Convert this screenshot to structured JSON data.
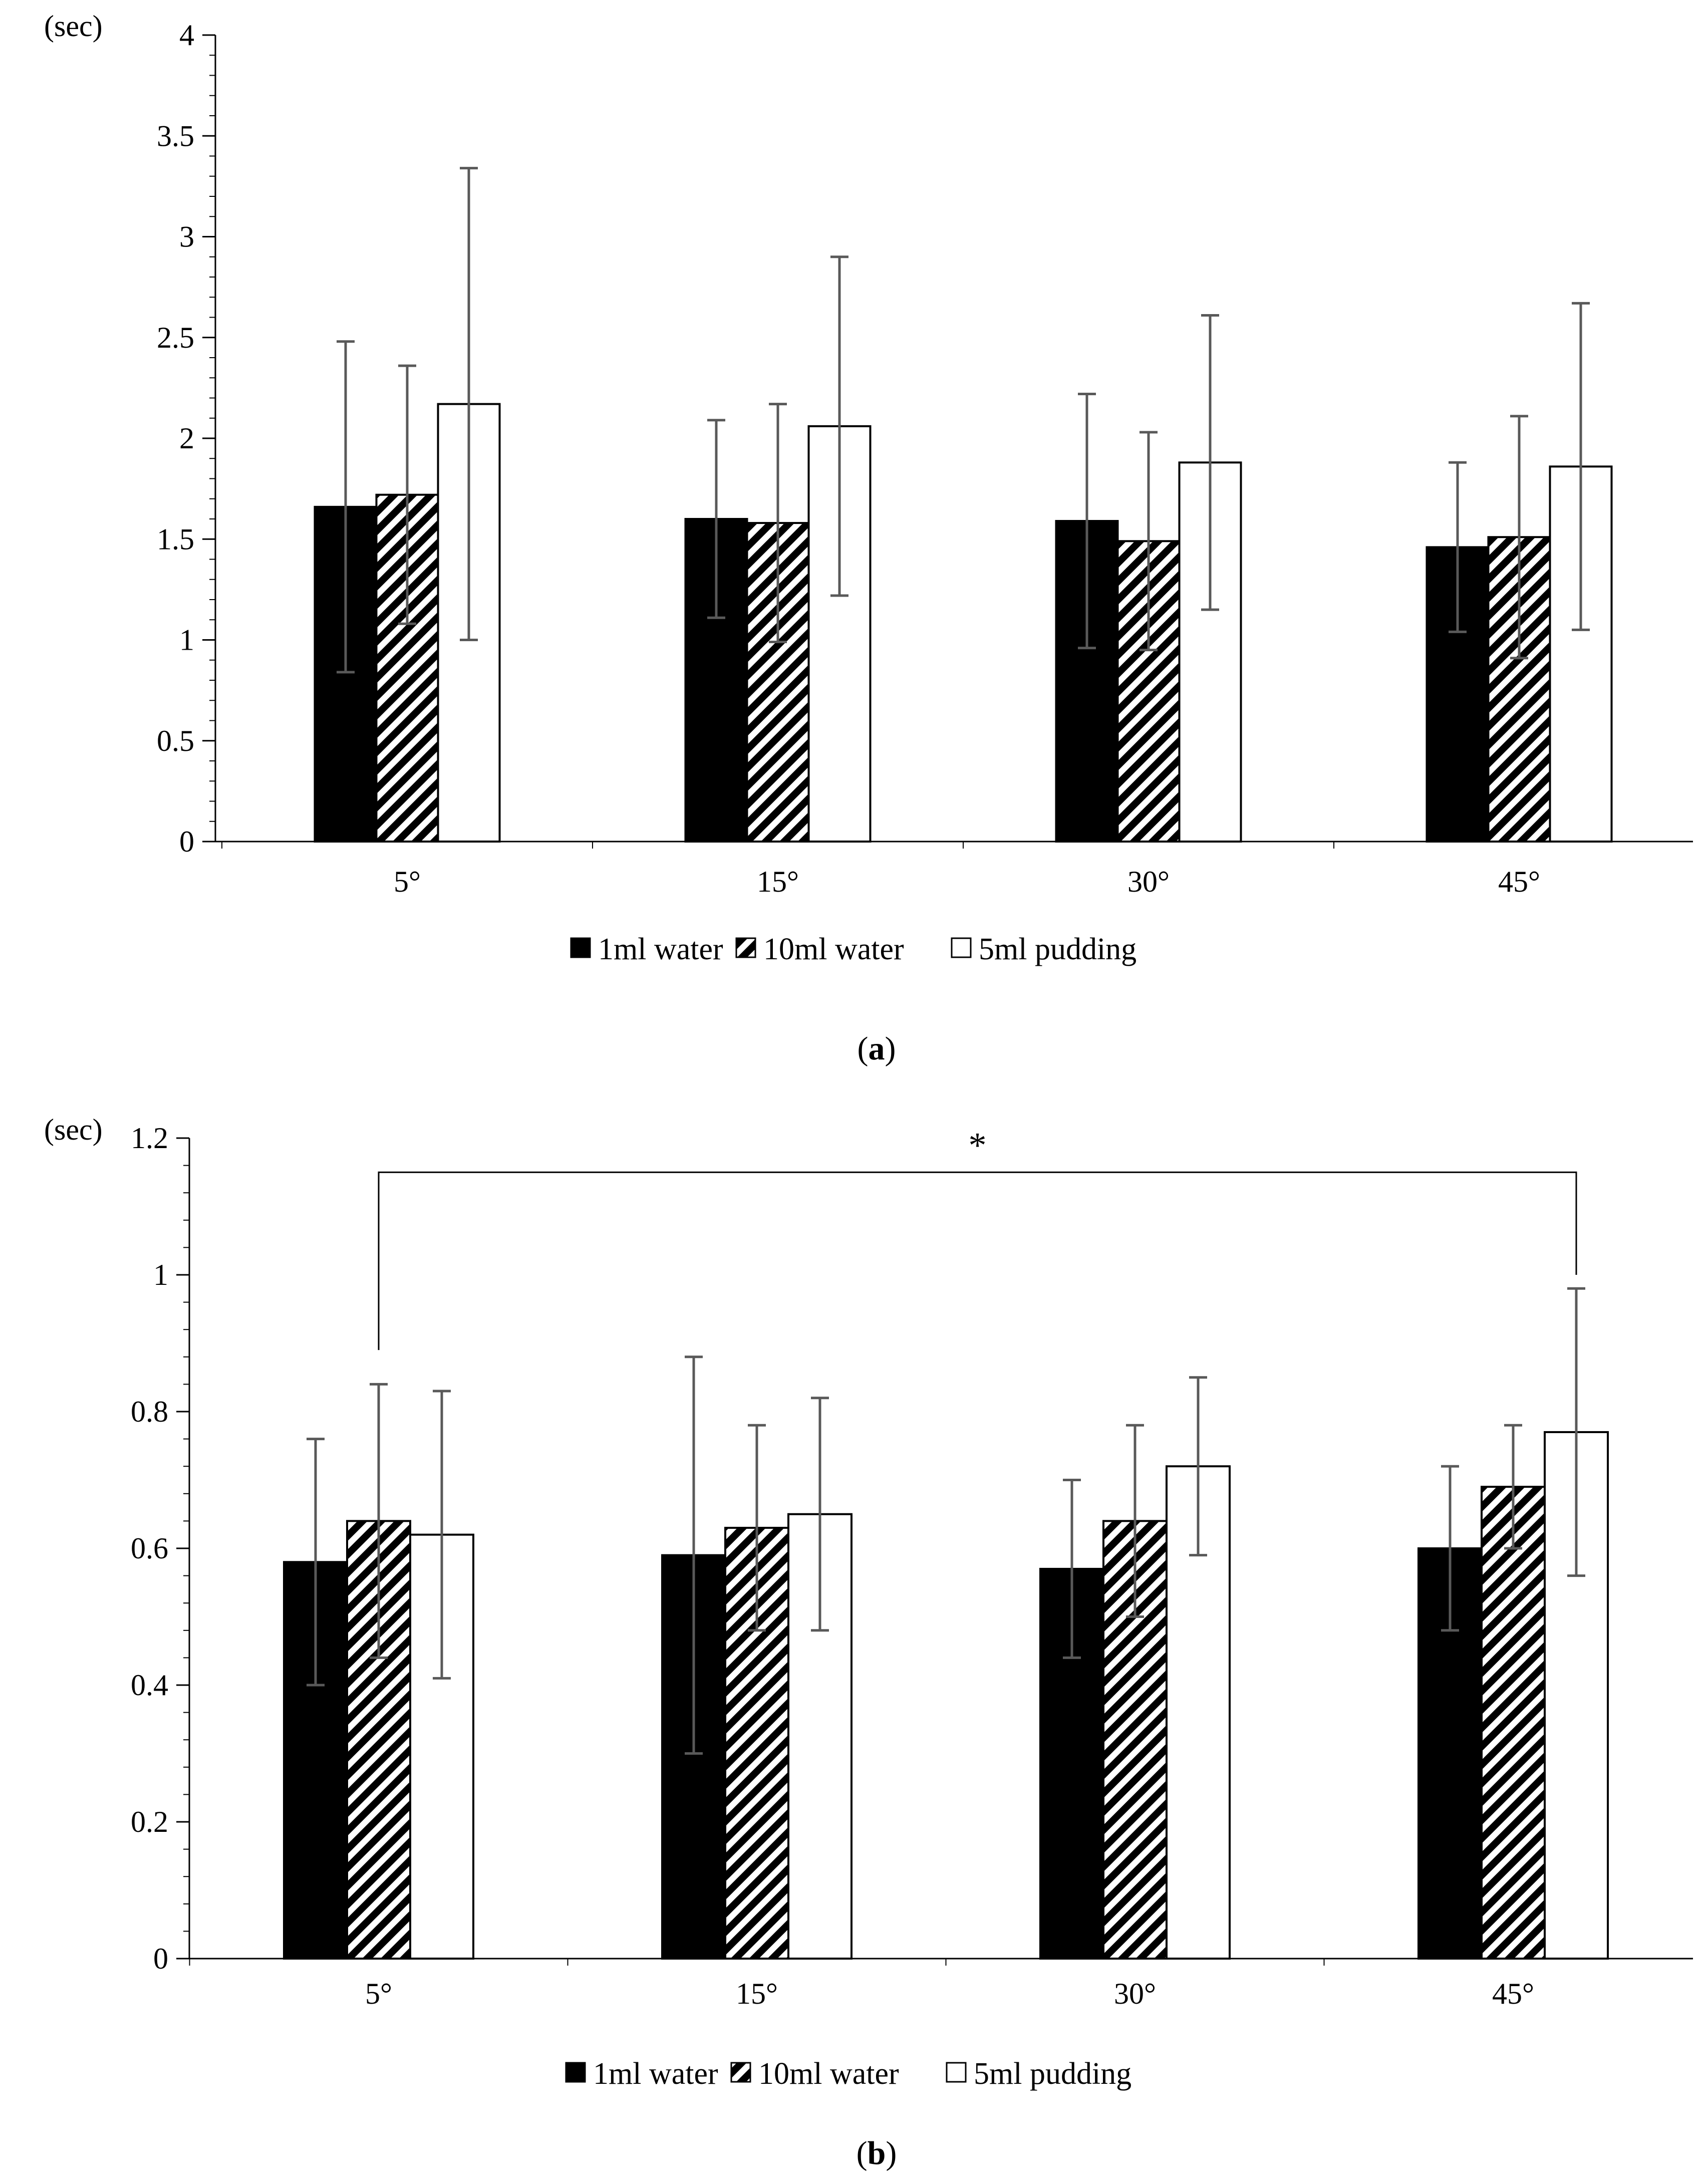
{
  "chart_data": [
    {
      "panel": "a",
      "type": "bar",
      "caption": "(a)",
      "caption_letter": "a",
      "unit_label": "(sec)",
      "title": "",
      "xlabel": "",
      "ylabel": "(sec)",
      "categories": [
        "5°",
        "15°",
        "30°",
        "45°"
      ],
      "ylim": [
        0,
        4
      ],
      "major_step": 0.5,
      "minor_step": 0.1,
      "tick_labels": [
        "0",
        "0.5",
        "1",
        "1.5",
        "2",
        "2.5",
        "3",
        "3.5",
        "4"
      ],
      "series": [
        {
          "name": "1ml water",
          "pattern": "solid",
          "values": [
            1.66,
            1.6,
            1.59,
            1.46
          ],
          "errors": [
            0.82,
            0.49,
            0.63,
            0.42
          ]
        },
        {
          "name": "10ml water",
          "pattern": "hatch",
          "values": [
            1.72,
            1.58,
            1.49,
            1.51
          ],
          "errors": [
            0.64,
            0.59,
            0.54,
            0.6
          ]
        },
        {
          "name": "5ml pudding",
          "pattern": "open",
          "values": [
            2.17,
            2.06,
            1.88,
            1.86
          ],
          "errors": [
            1.17,
            0.84,
            0.73,
            0.81
          ]
        }
      ],
      "legend_position": "bottom-center",
      "significance": null
    },
    {
      "panel": "b",
      "type": "bar",
      "caption": "(b)",
      "caption_letter": "b",
      "unit_label": "(sec)",
      "title": "",
      "xlabel": "",
      "ylabel": "(sec)",
      "categories": [
        "5°",
        "15°",
        "30°",
        "45°"
      ],
      "ylim": [
        0,
        1.2
      ],
      "major_step": 0.2,
      "minor_step": 0.04,
      "tick_labels": [
        "0",
        "0.2",
        "0.4",
        "0.6",
        "0.8",
        "1",
        "1.2"
      ],
      "series": [
        {
          "name": "1ml water",
          "pattern": "solid",
          "values": [
            0.58,
            0.59,
            0.57,
            0.6
          ],
          "errors": [
            0.18,
            0.29,
            0.13,
            0.12
          ]
        },
        {
          "name": "10ml water",
          "pattern": "hatch",
          "values": [
            0.64,
            0.63,
            0.64,
            0.69
          ],
          "errors": [
            0.2,
            0.15,
            0.14,
            0.09
          ]
        },
        {
          "name": "5ml pudding",
          "pattern": "open",
          "values": [
            0.62,
            0.65,
            0.72,
            0.77
          ],
          "errors": [
            0.21,
            0.17,
            0.13,
            0.21
          ]
        }
      ],
      "legend_position": "bottom-center",
      "significance": {
        "symbol": "*",
        "from_category": 0,
        "from_series": 1,
        "to_category": 3,
        "to_series": 2,
        "y": 1.15
      }
    }
  ],
  "colors": {
    "bar_solid": "#000000",
    "bar_open": "#ffffff",
    "error_bar": "#595959",
    "axis": "#000000"
  }
}
